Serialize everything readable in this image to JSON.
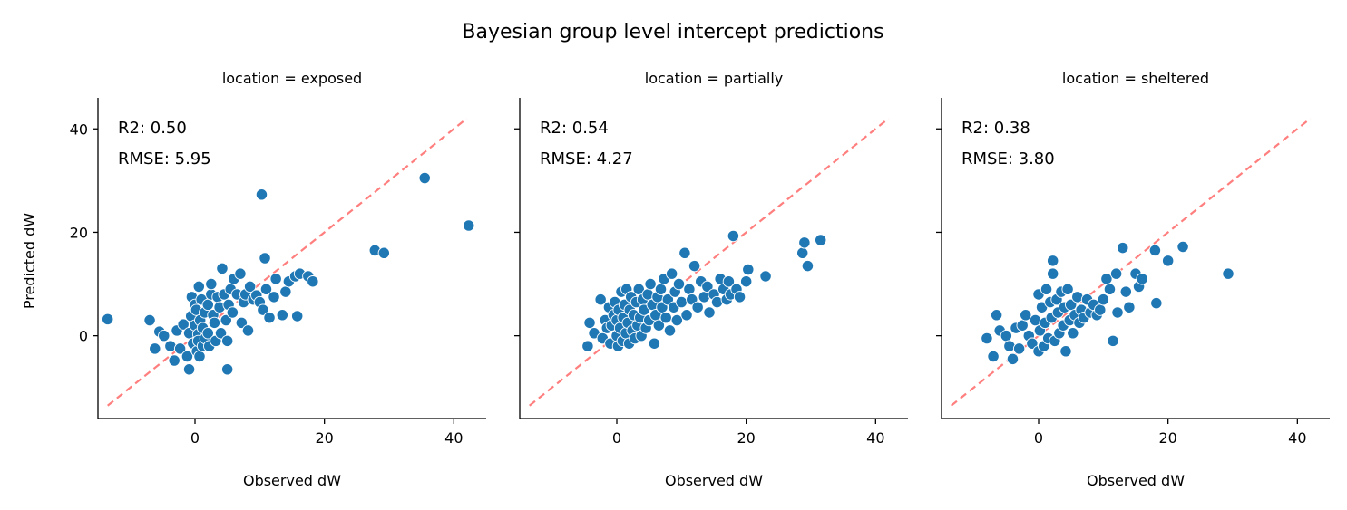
{
  "figure": {
    "title": "Bayesian group level intercept predictions",
    "ylabel": "Predicted dW",
    "xlabel": "Observed dW",
    "colors": {
      "point": "#1f77b4",
      "point_edge": "#ffffff",
      "identity_line": "#ff7f7f",
      "axis": "#000000"
    }
  },
  "chart_data": [
    {
      "type": "scatter",
      "title": "location = exposed",
      "xlabel": "Observed dW",
      "ylabel": "Predicted dW",
      "xlim": [
        -15,
        45
      ],
      "ylim": [
        -16,
        46
      ],
      "xticks": [
        0,
        20,
        40
      ],
      "yticks": [
        0,
        20,
        40
      ],
      "grid": false,
      "identity_line": [
        [
          -13.5,
          -13.5
        ],
        [
          42,
          42
        ]
      ],
      "annotations": [
        "R2: 0.50",
        "RMSE: 5.95"
      ],
      "points": [
        [
          -13.5,
          3.2
        ],
        [
          -7,
          3
        ],
        [
          -6.2,
          -2.5
        ],
        [
          -5.5,
          0.8
        ],
        [
          -4.8,
          0
        ],
        [
          -3.8,
          -2
        ],
        [
          -3.2,
          -4.8
        ],
        [
          -2.8,
          1
        ],
        [
          -2.3,
          -2.5
        ],
        [
          -1.8,
          2.2
        ],
        [
          -1.2,
          -4
        ],
        [
          -0.9,
          0.5
        ],
        [
          -0.6,
          3.8
        ],
        [
          -0.9,
          -6.5
        ],
        [
          -0.5,
          7.5
        ],
        [
          -0.3,
          -1.5
        ],
        [
          0,
          2
        ],
        [
          0,
          6
        ],
        [
          0.2,
          5
        ],
        [
          0.3,
          -3
        ],
        [
          0.5,
          0.3
        ],
        [
          0.5,
          -1
        ],
        [
          0.6,
          9.5
        ],
        [
          0.7,
          -4
        ],
        [
          0.8,
          3
        ],
        [
          1,
          7
        ],
        [
          1.2,
          1.5
        ],
        [
          1.2,
          -2
        ],
        [
          1.5,
          4.5
        ],
        [
          1.6,
          -0.5
        ],
        [
          2,
          0.5
        ],
        [
          2,
          6
        ],
        [
          2.2,
          -2
        ],
        [
          2.5,
          8
        ],
        [
          2.5,
          10
        ],
        [
          2.8,
          4
        ],
        [
          3,
          2.5
        ],
        [
          3.2,
          -1
        ],
        [
          3.5,
          7.5
        ],
        [
          3.8,
          5.5
        ],
        [
          4,
          0.5
        ],
        [
          4.2,
          13
        ],
        [
          4.5,
          8
        ],
        [
          4.8,
          3
        ],
        [
          5,
          -6.5
        ],
        [
          5,
          -1
        ],
        [
          5.2,
          6
        ],
        [
          5.5,
          9
        ],
        [
          5.8,
          4.5
        ],
        [
          6,
          11
        ],
        [
          6.5,
          8
        ],
        [
          7,
          12
        ],
        [
          7.2,
          2.5
        ],
        [
          7.5,
          6.5
        ],
        [
          7.8,
          8
        ],
        [
          8.2,
          1
        ],
        [
          8.5,
          9.5
        ],
        [
          9,
          7
        ],
        [
          9.5,
          7.8
        ],
        [
          10,
          6.5
        ],
        [
          10.3,
          27.3
        ],
        [
          10.5,
          5
        ],
        [
          10.8,
          15
        ],
        [
          11,
          9
        ],
        [
          11.5,
          3.5
        ],
        [
          12.2,
          7.5
        ],
        [
          12.5,
          11
        ],
        [
          13.5,
          4
        ],
        [
          14,
          8.5
        ],
        [
          14.5,
          10.5
        ],
        [
          15.5,
          11.5
        ],
        [
          15.8,
          3.8
        ],
        [
          16.2,
          12
        ],
        [
          17.5,
          11.5
        ],
        [
          18.2,
          10.5
        ],
        [
          27.8,
          16.5
        ],
        [
          29.2,
          16
        ],
        [
          35.5,
          30.5
        ],
        [
          42.3,
          21.3
        ]
      ]
    },
    {
      "type": "scatter",
      "title": "location = partially",
      "xlabel": "Observed dW",
      "ylabel": "",
      "xlim": [
        -15,
        45
      ],
      "ylim": [
        -16,
        46
      ],
      "xticks": [
        0,
        20,
        40
      ],
      "yticks": [
        0,
        20,
        40
      ],
      "grid": false,
      "identity_line": [
        [
          -13.5,
          -13.5
        ],
        [
          42,
          42
        ]
      ],
      "annotations": [
        "R2: 0.54",
        "RMSE: 4.27"
      ],
      "points": [
        [
          -4.5,
          -2
        ],
        [
          -4.2,
          2.5
        ],
        [
          -3.5,
          0.5
        ],
        [
          -2.5,
          7
        ],
        [
          -2.2,
          -0.5
        ],
        [
          -1.8,
          3
        ],
        [
          -1.5,
          1.5
        ],
        [
          -1.2,
          5.5
        ],
        [
          -1,
          -1.5
        ],
        [
          -0.8,
          2
        ],
        [
          -0.5,
          4
        ],
        [
          -0.3,
          6.5
        ],
        [
          0,
          0
        ],
        [
          0,
          3
        ],
        [
          0.2,
          -2
        ],
        [
          0.3,
          5
        ],
        [
          0.5,
          1.5
        ],
        [
          0.7,
          8.5
        ],
        [
          0.9,
          -1
        ],
        [
          1,
          3.5
        ],
        [
          1.2,
          6
        ],
        [
          1.4,
          0.5
        ],
        [
          1.5,
          9
        ],
        [
          1.7,
          2.5
        ],
        [
          1.9,
          -1.5
        ],
        [
          2,
          5
        ],
        [
          2.2,
          7.5
        ],
        [
          2.4,
          1
        ],
        [
          2.6,
          4
        ],
        [
          2.8,
          -0.5
        ],
        [
          3,
          6.5
        ],
        [
          3.2,
          2
        ],
        [
          3.4,
          9
        ],
        [
          3.6,
          3.5
        ],
        [
          3.8,
          0
        ],
        [
          4,
          7
        ],
        [
          4.2,
          5
        ],
        [
          4.5,
          1.5
        ],
        [
          4.8,
          8
        ],
        [
          5,
          3
        ],
        [
          5.2,
          10
        ],
        [
          5.5,
          6
        ],
        [
          5.8,
          -1.5
        ],
        [
          6,
          4
        ],
        [
          6.3,
          7.5
        ],
        [
          6.5,
          2
        ],
        [
          6.8,
          9
        ],
        [
          7,
          5.5
        ],
        [
          7.3,
          11
        ],
        [
          7.6,
          3.5
        ],
        [
          7.9,
          7
        ],
        [
          8.2,
          1
        ],
        [
          8.5,
          12
        ],
        [
          8.8,
          5.5
        ],
        [
          9,
          8.5
        ],
        [
          9.3,
          3
        ],
        [
          9.6,
          10
        ],
        [
          10,
          6.5
        ],
        [
          10.5,
          16
        ],
        [
          10.8,
          4
        ],
        [
          11.2,
          9
        ],
        [
          11.6,
          7
        ],
        [
          12,
          13.5
        ],
        [
          12.5,
          5.5
        ],
        [
          13,
          10.5
        ],
        [
          13.5,
          7.5
        ],
        [
          14,
          9.5
        ],
        [
          14.3,
          4.5
        ],
        [
          15,
          8
        ],
        [
          15.5,
          6.5
        ],
        [
          16,
          11
        ],
        [
          16.5,
          9
        ],
        [
          17,
          7
        ],
        [
          17.3,
          10.5
        ],
        [
          17.6,
          8
        ],
        [
          18,
          19.3
        ],
        [
          18.5,
          9
        ],
        [
          19,
          7.5
        ],
        [
          20,
          10.5
        ],
        [
          20.3,
          12.8
        ],
        [
          23,
          11.5
        ],
        [
          28.7,
          16
        ],
        [
          29,
          18
        ],
        [
          29.5,
          13.5
        ],
        [
          31.5,
          18.5
        ]
      ]
    },
    {
      "type": "scatter",
      "title": "location = sheltered",
      "xlabel": "Observed dW",
      "ylabel": "",
      "xlim": [
        -15,
        45
      ],
      "ylim": [
        -16,
        46
      ],
      "xticks": [
        0,
        20,
        40
      ],
      "yticks": [
        0,
        20,
        40
      ],
      "grid": false,
      "identity_line": [
        [
          -13.5,
          -13.5
        ],
        [
          42,
          42
        ]
      ],
      "annotations": [
        "R2: 0.38",
        "RMSE: 3.80"
      ],
      "points": [
        [
          -8,
          -0.5
        ],
        [
          -7,
          -4
        ],
        [
          -6.5,
          4
        ],
        [
          -6,
          1
        ],
        [
          -5,
          0
        ],
        [
          -4.5,
          -2
        ],
        [
          -4,
          -4.5
        ],
        [
          -3.5,
          1.5
        ],
        [
          -3,
          -2.5
        ],
        [
          -2.5,
          2
        ],
        [
          -2,
          4
        ],
        [
          -1.5,
          0
        ],
        [
          -1,
          -1.5
        ],
        [
          -0.5,
          3
        ],
        [
          0,
          -3
        ],
        [
          0,
          8
        ],
        [
          0.2,
          1
        ],
        [
          0.5,
          5.5
        ],
        [
          0.8,
          -2
        ],
        [
          1,
          2.5
        ],
        [
          1.2,
          9
        ],
        [
          1.5,
          -0.5
        ],
        [
          1.8,
          6.5
        ],
        [
          2,
          3.5
        ],
        [
          2.2,
          14.5
        ],
        [
          2.2,
          12
        ],
        [
          2.5,
          -1
        ],
        [
          2.8,
          7
        ],
        [
          3,
          4.5
        ],
        [
          3.2,
          0.5
        ],
        [
          3.5,
          8.5
        ],
        [
          3.8,
          2
        ],
        [
          4,
          5.5
        ],
        [
          4.2,
          -3
        ],
        [
          4.5,
          9
        ],
        [
          4.8,
          3
        ],
        [
          5,
          6
        ],
        [
          5.3,
          0.5
        ],
        [
          5.6,
          4
        ],
        [
          6,
          7.5
        ],
        [
          6.3,
          2.5
        ],
        [
          6.6,
          5
        ],
        [
          7,
          3.5
        ],
        [
          7.5,
          7
        ],
        [
          8,
          4.5
        ],
        [
          8.5,
          6
        ],
        [
          9,
          4
        ],
        [
          9.5,
          5
        ],
        [
          10,
          7
        ],
        [
          10.5,
          11
        ],
        [
          11,
          9
        ],
        [
          11.5,
          -1
        ],
        [
          12,
          12
        ],
        [
          12.2,
          4.5
        ],
        [
          13,
          17
        ],
        [
          13.5,
          8.5
        ],
        [
          14,
          5.5
        ],
        [
          15,
          12
        ],
        [
          15.5,
          9.5
        ],
        [
          16,
          11
        ],
        [
          18,
          16.5
        ],
        [
          18.2,
          6.3
        ],
        [
          20,
          14.5
        ],
        [
          22.3,
          17.2
        ],
        [
          29.3,
          12
        ]
      ]
    }
  ]
}
